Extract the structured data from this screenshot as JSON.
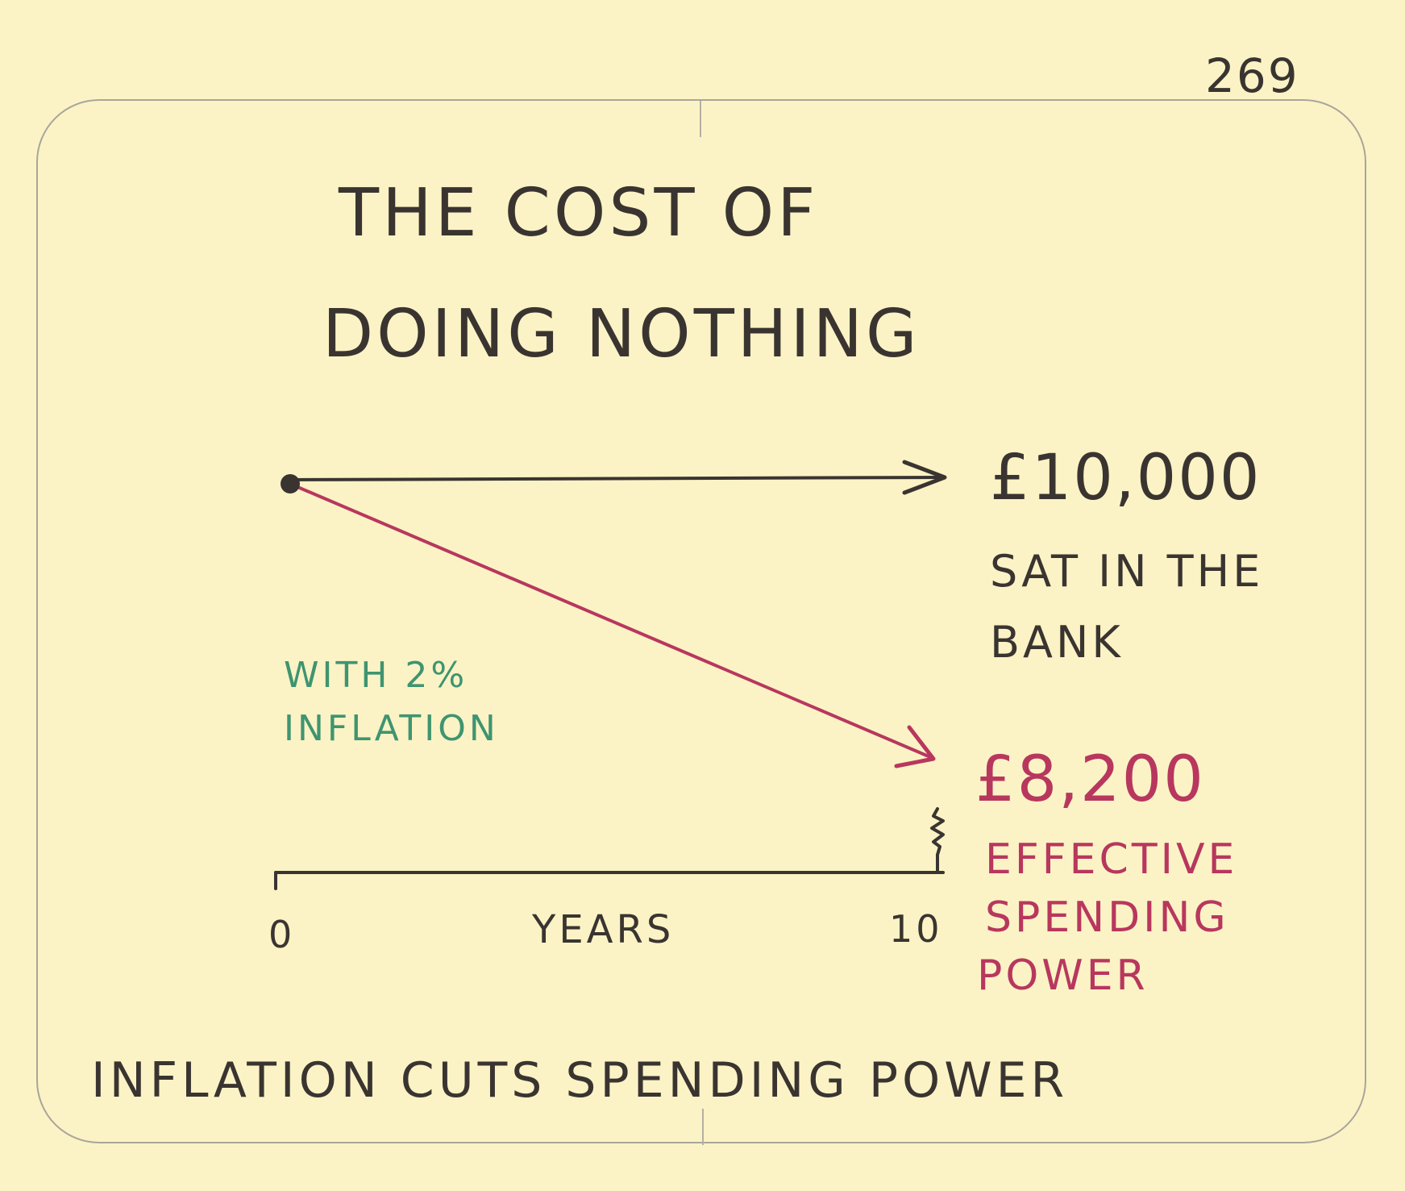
{
  "page_number": "269",
  "title": [
    "THE COST OF",
    "DOING NOTHING"
  ],
  "top_value": "£10,000",
  "top_description": [
    "SAT IN THE",
    "BANK"
  ],
  "bottom_value": "£8,200",
  "bottom_description": [
    "EFFECTIVE",
    "SPENDING",
    "POWER"
  ],
  "inflation_note": [
    "WITH 2%",
    "INFLATION"
  ],
  "x_axis": {
    "start_label": "0",
    "label": "YEARS",
    "end_label": "10"
  },
  "caption": "INFLATION CUTS SPENDING POWER",
  "colors": {
    "ink": "#3a3431",
    "decline": "#b8375e",
    "inflation_note": "#3f9470",
    "paper": "#fbf3c5",
    "card_border": "#a9a59a"
  }
}
